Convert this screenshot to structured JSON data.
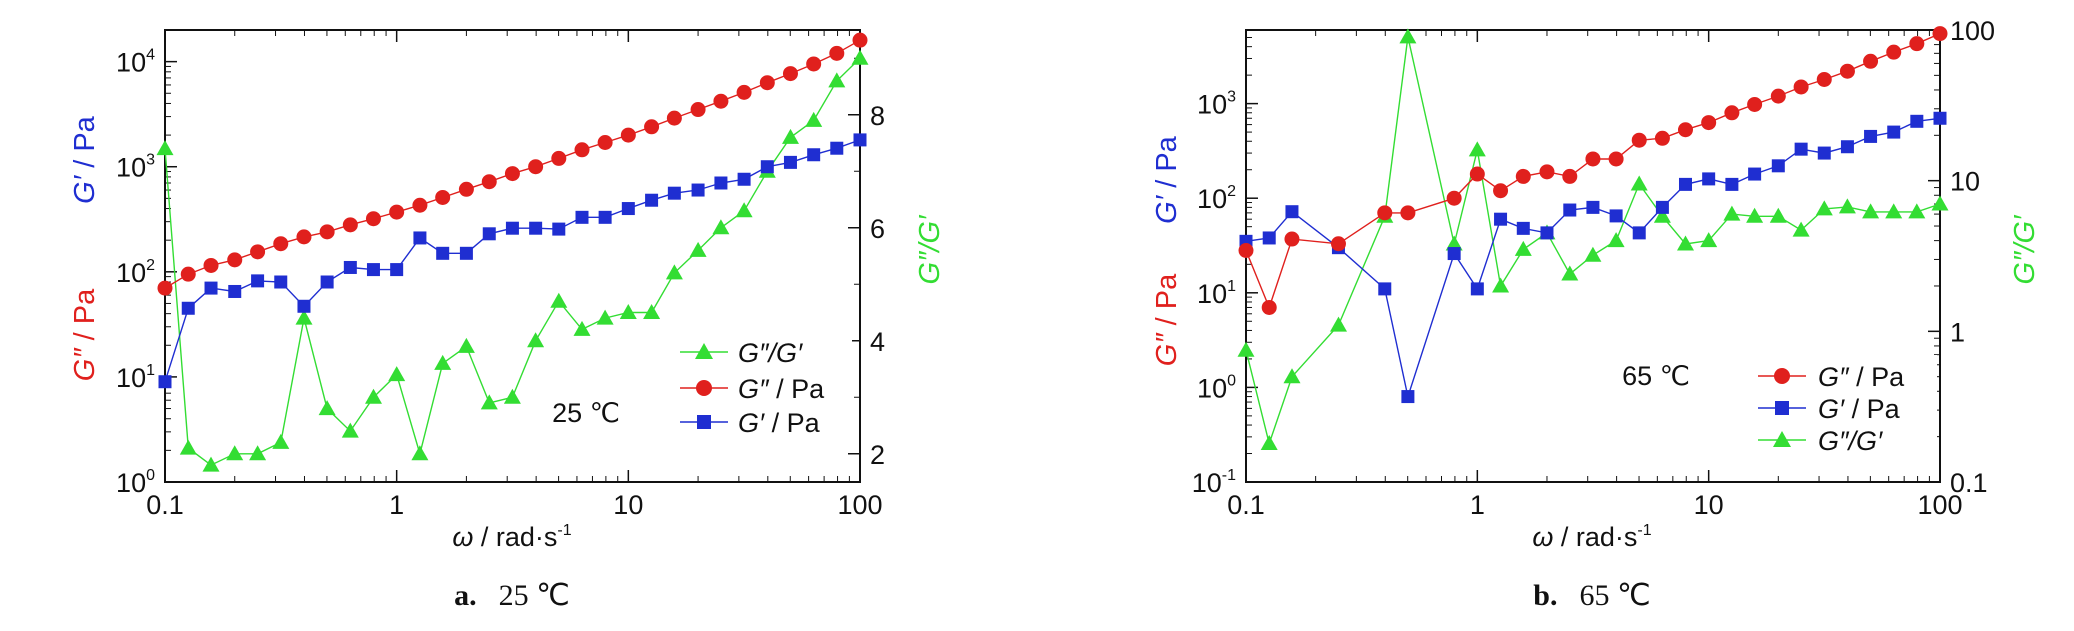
{
  "chart_data": [
    {
      "type": "line",
      "caption_letter": "a.",
      "caption_text": "25 ℃",
      "annotation": "25 ℃",
      "xlabel_symbol": "ω",
      "xlabel_text": " / rad·s",
      "xlabel_sup": "-1",
      "xscale": "log",
      "xlim": [
        0.1,
        100
      ],
      "xticks": [
        {
          "v": 0.1,
          "label": "0.1"
        },
        {
          "v": 1,
          "label": "1"
        },
        {
          "v": 10,
          "label": "10"
        },
        {
          "v": 100,
          "label": "100"
        }
      ],
      "left_axis": {
        "scale": "log",
        "ylim": [
          1,
          20000
        ],
        "ticks": [
          {
            "v": 1,
            "base": "10",
            "exp": "0"
          },
          {
            "v": 10,
            "base": "10",
            "exp": "1"
          },
          {
            "v": 100,
            "base": "10",
            "exp": "2"
          },
          {
            "v": 1000,
            "base": "10",
            "exp": "3"
          },
          {
            "v": 10000,
            "base": "10",
            "exp": "4"
          }
        ],
        "labels": [
          {
            "symbol": "G″",
            "unit": " / Pa",
            "color": "#e0201d"
          },
          {
            "symbol": "G′",
            "unit": " / Pa",
            "color": "#1f2ed1"
          }
        ]
      },
      "right_axis": {
        "scale": "linear",
        "ylim": [
          1.5,
          9.5
        ],
        "ticks": [
          {
            "v": 2,
            "label": "2"
          },
          {
            "v": 4,
            "label": "4"
          },
          {
            "v": 6,
            "label": "6"
          },
          {
            "v": 8,
            "label": "8"
          }
        ],
        "label": {
          "symbol": "G″/G′",
          "color": "#33dd33"
        }
      },
      "legend_position": "lower-right",
      "legend_order": [
        "tan",
        "Gpp",
        "Gp"
      ],
      "series": [
        {
          "key": "Gpp",
          "name_symbol": "G″",
          "name_unit": " / Pa",
          "color": "#e0201d",
          "marker": "circle",
          "axis": "left",
          "x": [
            0.1,
            0.126,
            0.158,
            0.2,
            0.251,
            0.316,
            0.398,
            0.501,
            0.631,
            0.794,
            1,
            1.26,
            1.58,
            2,
            2.51,
            3.16,
            3.98,
            5.01,
            6.31,
            7.94,
            10,
            12.6,
            15.8,
            20,
            25.1,
            31.6,
            39.8,
            50.1,
            63.1,
            79.4,
            100
          ],
          "y": [
            70,
            95,
            115,
            130,
            155,
            185,
            215,
            240,
            280,
            320,
            370,
            430,
            510,
            610,
            720,
            860,
            1000,
            1200,
            1450,
            1700,
            2000,
            2400,
            2900,
            3500,
            4200,
            5100,
            6300,
            7700,
            9500,
            12000,
            16000
          ]
        },
        {
          "key": "Gp",
          "name_symbol": "G′",
          "name_unit": " / Pa",
          "color": "#1f2ed1",
          "marker": "square",
          "axis": "left",
          "x": [
            0.1,
            0.126,
            0.158,
            0.2,
            0.251,
            0.316,
            0.398,
            0.501,
            0.631,
            0.794,
            1,
            1.26,
            1.58,
            2,
            2.51,
            3.16,
            3.98,
            5.01,
            6.31,
            7.94,
            10,
            12.6,
            15.8,
            20,
            25.1,
            31.6,
            39.8,
            50.1,
            63.1,
            79.4,
            100
          ],
          "y": [
            9,
            45,
            70,
            65,
            82,
            80,
            47,
            80,
            110,
            105,
            105,
            210,
            150,
            150,
            230,
            260,
            260,
            255,
            330,
            330,
            400,
            480,
            560,
            600,
            700,
            760,
            1000,
            1100,
            1300,
            1500,
            1800
          ]
        },
        {
          "key": "tan",
          "name_symbol": "G″/G′",
          "name_unit": "",
          "color": "#33dd33",
          "marker": "triangle",
          "axis": "right",
          "x": [
            0.1,
            0.126,
            0.158,
            0.2,
            0.251,
            0.316,
            0.398,
            0.501,
            0.631,
            0.794,
            1,
            1.26,
            1.58,
            2,
            2.51,
            3.16,
            3.98,
            5.01,
            6.31,
            7.94,
            10,
            12.6,
            15.8,
            20,
            25.1,
            31.6,
            39.8,
            50.1,
            63.1,
            79.4,
            100
          ],
          "y": [
            7.4,
            2.1,
            1.8,
            2.0,
            2.0,
            2.2,
            4.4,
            2.8,
            2.4,
            3.0,
            3.4,
            2.0,
            3.6,
            3.9,
            2.9,
            3.0,
            4.0,
            4.7,
            4.2,
            4.4,
            4.5,
            4.5,
            5.2,
            5.6,
            6.0,
            6.3,
            7.0,
            7.6,
            7.9,
            8.6,
            9.0
          ]
        }
      ]
    },
    {
      "type": "line",
      "caption_letter": "b.",
      "caption_text": "65 ℃",
      "annotation": "65 ℃",
      "xlabel_symbol": "ω",
      "xlabel_text": " / rad·s",
      "xlabel_sup": "-1",
      "xscale": "log",
      "xlim": [
        0.1,
        100
      ],
      "xticks": [
        {
          "v": 0.1,
          "label": "0.1"
        },
        {
          "v": 1,
          "label": "1"
        },
        {
          "v": 10,
          "label": "10"
        },
        {
          "v": 100,
          "label": "100"
        }
      ],
      "left_axis": {
        "scale": "log",
        "ylim": [
          0.1,
          6000
        ],
        "ticks": [
          {
            "v": 0.1,
            "base": "10",
            "exp": "-1"
          },
          {
            "v": 1,
            "base": "10",
            "exp": "0"
          },
          {
            "v": 10,
            "base": "10",
            "exp": "1"
          },
          {
            "v": 100,
            "base": "10",
            "exp": "2"
          },
          {
            "v": 1000,
            "base": "10",
            "exp": "3"
          }
        ],
        "labels": [
          {
            "symbol": "G″",
            "unit": " / Pa",
            "color": "#e0201d"
          },
          {
            "symbol": "G′",
            "unit": " / Pa",
            "color": "#1f2ed1"
          }
        ]
      },
      "right_axis": {
        "scale": "log",
        "ylim": [
          0.1,
          100
        ],
        "ticks": [
          {
            "v": 0.1,
            "label": "0.1"
          },
          {
            "v": 1,
            "label": "1"
          },
          {
            "v": 10,
            "label": "10"
          },
          {
            "v": 100,
            "label": "100"
          }
        ],
        "label": {
          "symbol": "G″/G′",
          "color": "#33dd33"
        }
      },
      "legend_position": "lower-right",
      "legend_order": [
        "Gpp",
        "Gp",
        "tan"
      ],
      "series": [
        {
          "key": "Gpp",
          "name_symbol": "G″",
          "name_unit": " / Pa",
          "color": "#e0201d",
          "marker": "circle",
          "axis": "left",
          "x": [
            0.1,
            0.126,
            0.158,
            0.251,
            0.398,
            0.501,
            0.794,
            1,
            1.26,
            1.58,
            2,
            2.51,
            3.16,
            3.98,
            5.01,
            6.31,
            7.94,
            10,
            12.6,
            15.8,
            20,
            25.1,
            31.6,
            39.8,
            50.1,
            63.1,
            79.4,
            100
          ],
          "y": [
            28,
            7,
            37,
            33,
            70,
            70,
            100,
            180,
            120,
            170,
            190,
            170,
            260,
            260,
            410,
            430,
            530,
            630,
            800,
            980,
            1200,
            1500,
            1800,
            2200,
            2800,
            3500,
            4300,
            5500
          ]
        },
        {
          "key": "Gp",
          "name_symbol": "G′",
          "name_unit": " / Pa",
          "color": "#1f2ed1",
          "marker": "square",
          "axis": "left",
          "x": [
            0.1,
            0.126,
            0.158,
            0.251,
            0.398,
            0.501,
            0.794,
            1,
            1.26,
            1.58,
            2,
            2.51,
            3.16,
            3.98,
            5.01,
            6.31,
            7.94,
            10,
            12.6,
            15.8,
            20,
            25.1,
            31.6,
            39.8,
            50.1,
            63.1,
            79.4,
            100
          ],
          "y": [
            35,
            38,
            72,
            30,
            11,
            0.8,
            26,
            11,
            60,
            48,
            43,
            75,
            80,
            65,
            43,
            80,
            140,
            160,
            140,
            180,
            220,
            330,
            300,
            350,
            450,
            500,
            650,
            700
          ]
        },
        {
          "key": "tan",
          "name_symbol": "G″/G′",
          "name_unit": "",
          "color": "#33dd33",
          "marker": "triangle",
          "axis": "right",
          "x": [
            0.1,
            0.126,
            0.158,
            0.251,
            0.398,
            0.501,
            0.794,
            1,
            1.26,
            1.58,
            2,
            2.51,
            3.16,
            3.98,
            5.01,
            6.31,
            7.94,
            10,
            12.6,
            15.8,
            20,
            25.1,
            31.6,
            39.8,
            50.1,
            63.1,
            79.4,
            100
          ],
          "y": [
            0.75,
            0.18,
            0.5,
            1.1,
            5.8,
            90,
            3.8,
            16,
            2,
            3.5,
            4.5,
            2.4,
            3.2,
            4.0,
            9.5,
            5.8,
            3.8,
            4.0,
            6.0,
            5.8,
            5.8,
            4.7,
            6.5,
            6.7,
            6.2,
            6.2,
            6.2,
            7.0
          ]
        }
      ]
    }
  ]
}
